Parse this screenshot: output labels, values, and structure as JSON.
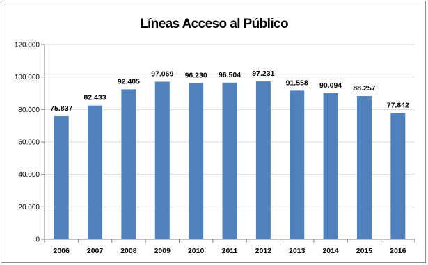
{
  "chart_data": {
    "type": "bar",
    "title": "Líneas Acceso al Público",
    "categories": [
      "2006",
      "2007",
      "2008",
      "2009",
      "2010",
      "2011",
      "2012",
      "2013",
      "2014",
      "2015",
      "2016"
    ],
    "values": [
      75837,
      82433,
      92405,
      97069,
      96230,
      96504,
      97231,
      91558,
      90094,
      88257,
      77842
    ],
    "data_labels": [
      "75.837",
      "82.433",
      "92.405",
      "97.069",
      "96.230",
      "96.504",
      "97.231",
      "91.558",
      "90.094",
      "88.257",
      "77.842"
    ],
    "yticks": [
      0,
      20000,
      40000,
      60000,
      80000,
      100000,
      120000
    ],
    "ytick_labels": [
      "0",
      "20.000",
      "40.000",
      "60.000",
      "80.000",
      "100.000",
      "120.000"
    ],
    "ylim": [
      0,
      120000
    ],
    "xlabel": "",
    "ylabel": "",
    "grid": true,
    "legend": "none",
    "bar_color": "#4f81bd",
    "grid_color": "#d9d9d9",
    "axis_color": "#808080"
  }
}
